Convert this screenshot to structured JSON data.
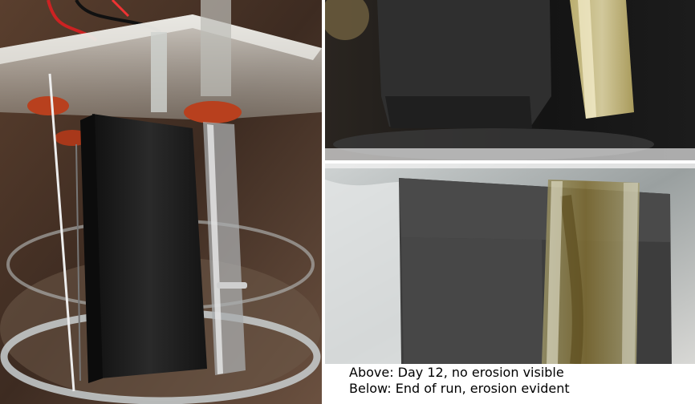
{
  "caption": {
    "line1": "Above: Day 12, no erosion visible",
    "line2": "Below: End of run, erosion evident"
  },
  "colors": {
    "electrode": "#1d1d1d",
    "background_left": "#3a2a20",
    "acrylic": "#d9d9d4",
    "sealant": "#b8401e",
    "biofilm": "#8a7a3a"
  },
  "photos": {
    "left": "apparatus-overview-photo",
    "top_right": "day12-closeup-photo",
    "bottom_right": "end-of-run-closeup-photo"
  }
}
